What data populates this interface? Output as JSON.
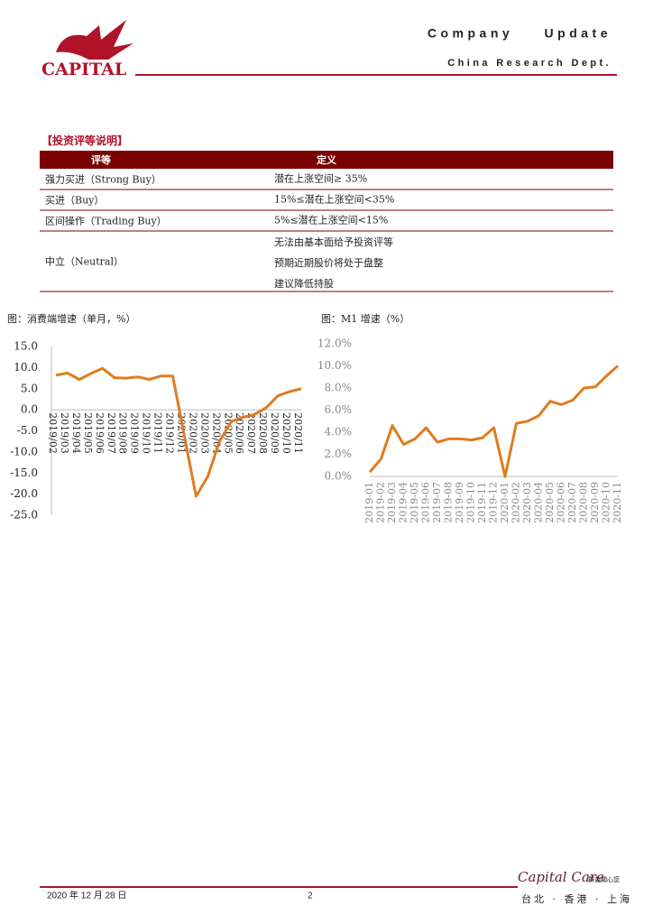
{
  "header": {
    "logo": "CAPITAL",
    "title": "Company Update",
    "dept": "China Research Dept."
  },
  "table": {
    "title": "【投资评等说明】",
    "columns": [
      "评等",
      "定义"
    ],
    "rows": [
      [
        "强力买进（Strong Buy）",
        "潜在上涨空间≥ 35%"
      ],
      [
        "买进（Buy）",
        "15%≤潜在上涨空间<35%"
      ],
      [
        "区间操作（Trading Buy）",
        "5%≤潜在上涨空间<15%"
      ],
      [
        "中立（Neutral）",
        [
          "无法由基本面给予投资评等",
          "预期近期股价将处于盘整",
          "建议降低持股"
        ]
      ]
    ]
  },
  "chart_data": [
    {
      "type": "line",
      "title": "图：消费端增速（单月，%）",
      "color": "#e07b1f",
      "categories": [
        "2019/02",
        "2019/03",
        "2019/04",
        "2019/05",
        "2019/06",
        "2019/07",
        "2019/08",
        "2019/09",
        "2019/10",
        "2019/11",
        "2019/12",
        "2020/01",
        "2020/02",
        "2020/03",
        "2020/04",
        "2020/05",
        "2020/06",
        "2020/07",
        "2020/08",
        "2020/09",
        "2020/10",
        "2020/11"
      ],
      "values": [
        8.2,
        8.7,
        7.2,
        8.6,
        9.8,
        7.6,
        7.5,
        7.8,
        7.2,
        8.0,
        8.0,
        -6.3,
        -20.5,
        -15.8,
        -7.5,
        -2.8,
        -1.8,
        -1.1,
        0.5,
        3.3,
        4.3,
        5.0
      ],
      "ylim": [
        -25,
        15
      ],
      "yticks": [
        {
          "value": 15,
          "label": "15.0"
        },
        {
          "value": 10,
          "label": "10.0"
        },
        {
          "value": 5,
          "label": "5.0"
        },
        {
          "value": 0,
          "label": "0.0"
        },
        {
          "value": -5,
          "label": "-5.0"
        },
        {
          "value": -10,
          "label": "-10.0"
        },
        {
          "value": -15,
          "label": "-15.0"
        },
        {
          "value": -20,
          "label": "-20.0"
        },
        {
          "value": -25,
          "label": "-25.0"
        }
      ]
    },
    {
      "type": "line",
      "title": "图：M1 增速（%）",
      "color": "#e07b1f",
      "categories": [
        "2019-01",
        "2019-02",
        "2019-03",
        "2019-04",
        "2019-05",
        "2019-06",
        "2019-07",
        "2019-08",
        "2019-09",
        "2019-10",
        "2019-11",
        "2019-12",
        "2020-01",
        "2020-02",
        "2020-03",
        "2020-04",
        "2020-05",
        "2020-06",
        "2020-07",
        "2020-08",
        "2020-09",
        "2020-10",
        "2020-11"
      ],
      "values": [
        0.4,
        1.6,
        4.6,
        2.9,
        3.4,
        4.4,
        3.1,
        3.4,
        3.4,
        3.3,
        3.5,
        4.4,
        0.0,
        4.8,
        5.0,
        5.5,
        6.8,
        6.5,
        6.9,
        8.0,
        8.1,
        9.1,
        10.0
      ],
      "ylim": [
        0,
        12
      ],
      "yticks": [
        {
          "value": 0,
          "label": "0.0%"
        },
        {
          "value": 2,
          "label": "2.0%"
        },
        {
          "value": 4,
          "label": "4.0%"
        },
        {
          "value": 6,
          "label": "6.0%"
        },
        {
          "value": 8,
          "label": "8.0%"
        },
        {
          "value": 10,
          "label": "10.0%"
        },
        {
          "value": 12,
          "label": "12.0%"
        }
      ]
    }
  ],
  "footer": {
    "date": "2020 年 12 月 28 日",
    "page": "2",
    "brand": "Capital Care",
    "brand_cn": "群益關心您",
    "cities": "台北 · 香港 · 上海"
  }
}
